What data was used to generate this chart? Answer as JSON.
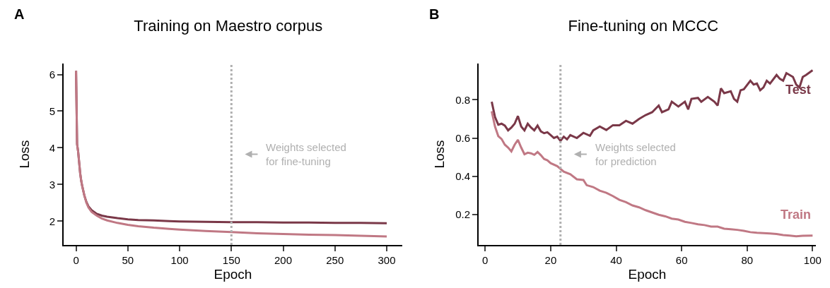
{
  "chart_data": [
    {
      "type": "line",
      "title": "Training on Maestro corpus",
      "xlabel": "Epoch",
      "ylabel": "Loss",
      "annotations": [
        "A"
      ],
      "legend": false,
      "grid": false,
      "xlim": [
        -12,
        315
      ],
      "xticks": [
        0,
        50,
        100,
        150,
        200,
        250,
        300
      ],
      "ylim": [
        1.35,
        6.3
      ],
      "yticks": [
        2,
        3,
        4,
        5,
        6
      ],
      "ref_lines": [
        {
          "axis": "x",
          "value": 150,
          "label": "Weights selected\nfor fine-tuning",
          "color": "#b0b0b0",
          "line_style": "dotted"
        }
      ],
      "series": [
        {
          "color": "#7a3848",
          "x": [
            0,
            1,
            2,
            3,
            4,
            5,
            6,
            8,
            10,
            12,
            15,
            20,
            25,
            30,
            40,
            50,
            60,
            75,
            90,
            100,
            125,
            150,
            175,
            200,
            225,
            250,
            275,
            300
          ],
          "values": [
            6.1,
            4.1,
            3.9,
            3.6,
            3.3,
            3.1,
            2.95,
            2.7,
            2.52,
            2.4,
            2.3,
            2.2,
            2.15,
            2.12,
            2.08,
            2.05,
            2.03,
            2.02,
            2.0,
            1.99,
            1.98,
            1.97,
            1.97,
            1.96,
            1.96,
            1.95,
            1.95,
            1.94
          ]
        },
        {
          "color": "#c07884",
          "x": [
            0,
            1,
            2,
            3,
            4,
            5,
            6,
            8,
            10,
            12,
            15,
            20,
            25,
            30,
            40,
            50,
            60,
            75,
            90,
            100,
            125,
            150,
            175,
            200,
            225,
            250,
            275,
            300
          ],
          "values": [
            6.1,
            4.1,
            3.9,
            3.6,
            3.3,
            3.1,
            2.95,
            2.7,
            2.5,
            2.37,
            2.25,
            2.15,
            2.07,
            2.02,
            1.95,
            1.9,
            1.86,
            1.82,
            1.79,
            1.77,
            1.73,
            1.7,
            1.67,
            1.65,
            1.63,
            1.62,
            1.6,
            1.58
          ]
        }
      ]
    },
    {
      "type": "line",
      "title": "Fine-tuning on MCCC",
      "xlabel": "Epoch",
      "ylabel": "Loss",
      "annotations": [
        "B"
      ],
      "legend": false,
      "grid": false,
      "xlim": [
        -2,
        101
      ],
      "xticks": [
        0,
        20,
        40,
        60,
        80,
        100
      ],
      "ylim": [
        0.04,
        0.99
      ],
      "yticks": [
        0.2,
        0.4,
        0.6,
        0.8
      ],
      "ref_lines": [
        {
          "axis": "x",
          "value": 23,
          "label": "Weights selected\nfor prediction",
          "color": "#b0b0b0",
          "line_style": "dotted"
        }
      ],
      "series": [
        {
          "name": "Test",
          "color": "#7a3848",
          "x": [
            2,
            3,
            4,
            5,
            6,
            7,
            8,
            9,
            10,
            11,
            12,
            13,
            14,
            15,
            16,
            17,
            18,
            19,
            20,
            21,
            22,
            23,
            24,
            25,
            26,
            28,
            30,
            32,
            33,
            35,
            37,
            39,
            41,
            43,
            45,
            47,
            49,
            51,
            53,
            54,
            56,
            57,
            59,
            61,
            62,
            63,
            65,
            66,
            68,
            70,
            71,
            72,
            73,
            75,
            76,
            77,
            78,
            79,
            81,
            82,
            83,
            84,
            85,
            86,
            87,
            89,
            90,
            91,
            92,
            94,
            95,
            96,
            97,
            98,
            100
          ],
          "values": [
            0.79,
            0.71,
            0.67,
            0.675,
            0.665,
            0.64,
            0.655,
            0.675,
            0.715,
            0.66,
            0.64,
            0.675,
            0.655,
            0.64,
            0.665,
            0.635,
            0.625,
            0.63,
            0.615,
            0.6,
            0.607,
            0.585,
            0.607,
            0.593,
            0.615,
            0.6,
            0.627,
            0.612,
            0.64,
            0.66,
            0.642,
            0.667,
            0.667,
            0.69,
            0.675,
            0.7,
            0.72,
            0.735,
            0.77,
            0.735,
            0.75,
            0.79,
            0.765,
            0.79,
            0.75,
            0.805,
            0.81,
            0.79,
            0.815,
            0.79,
            0.77,
            0.86,
            0.835,
            0.845,
            0.805,
            0.79,
            0.85,
            0.855,
            0.9,
            0.88,
            0.885,
            0.85,
            0.865,
            0.9,
            0.885,
            0.93,
            0.91,
            0.9,
            0.94,
            0.92,
            0.88,
            0.865,
            0.92,
            0.93,
            0.955
          ]
        },
        {
          "name": "Train",
          "color": "#c07884",
          "x": [
            2,
            3,
            4,
            5,
            6,
            7,
            8,
            9,
            10,
            11,
            12,
            13,
            14,
            15,
            16,
            17,
            18,
            19,
            20,
            22,
            24,
            26,
            28,
            30,
            31,
            33,
            35,
            37,
            39,
            41,
            43,
            45,
            47,
            49,
            51,
            53,
            55,
            57,
            59,
            61,
            63,
            65,
            67,
            69,
            71,
            73,
            75,
            77,
            79,
            81,
            83,
            85,
            87,
            89,
            91,
            93,
            95,
            97,
            100
          ],
          "values": [
            0.74,
            0.66,
            0.61,
            0.595,
            0.565,
            0.55,
            0.53,
            0.565,
            0.59,
            0.55,
            0.515,
            0.523,
            0.52,
            0.512,
            0.527,
            0.51,
            0.49,
            0.483,
            0.468,
            0.453,
            0.424,
            0.41,
            0.384,
            0.38,
            0.353,
            0.343,
            0.324,
            0.313,
            0.296,
            0.276,
            0.264,
            0.247,
            0.237,
            0.222,
            0.21,
            0.198,
            0.19,
            0.178,
            0.173,
            0.161,
            0.155,
            0.148,
            0.144,
            0.136,
            0.136,
            0.125,
            0.122,
            0.119,
            0.114,
            0.107,
            0.104,
            0.102,
            0.1,
            0.097,
            0.092,
            0.089,
            0.085,
            0.088,
            0.089
          ]
        }
      ]
    }
  ]
}
